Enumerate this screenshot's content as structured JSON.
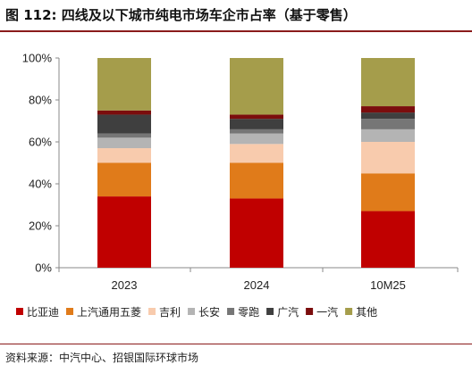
{
  "title": "图 112: 四线及以下城市纯电市场车企市占率（基于零售）",
  "source": "资料来源：中汽中心、招银国际环球市场",
  "colors": {
    "title_rule": "#8a1b1b"
  },
  "chart_data": {
    "type": "bar",
    "stacked": true,
    "categories": [
      "2023",
      "2024",
      "10M25"
    ],
    "ylim": [
      0,
      100
    ],
    "yticks": [
      "0%",
      "20%",
      "40%",
      "60%",
      "80%",
      "100%"
    ],
    "ytick_values": [
      0,
      20,
      40,
      60,
      80,
      100
    ],
    "grid": false,
    "legend_position": "bottom",
    "series": [
      {
        "name": "比亚迪",
        "color": "#c00000",
        "values": [
          34,
          33,
          27
        ]
      },
      {
        "name": "上汽通用五菱",
        "color": "#e07b1a",
        "values": [
          16,
          17,
          18
        ]
      },
      {
        "name": "吉利",
        "color": "#f8cbad",
        "values": [
          7,
          9,
          15
        ]
      },
      {
        "name": "长安",
        "color": "#b4b4b4",
        "values": [
          5,
          5,
          6
        ]
      },
      {
        "name": "零跑",
        "color": "#767676",
        "values": [
          2,
          2,
          5
        ]
      },
      {
        "name": "广汽",
        "color": "#3f3f3f",
        "values": [
          9,
          5,
          3
        ]
      },
      {
        "name": "一汽",
        "color": "#7b0d0d",
        "values": [
          2,
          2,
          3
        ]
      },
      {
        "name": "其他",
        "color": "#a59d4b",
        "values": [
          25,
          27,
          23
        ]
      }
    ]
  }
}
